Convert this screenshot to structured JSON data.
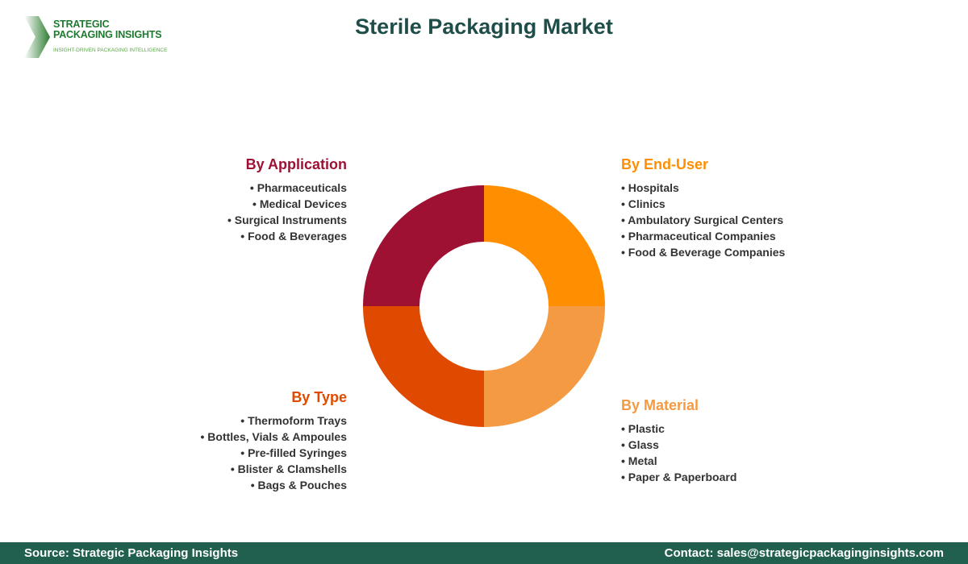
{
  "logo": {
    "line1": "STRATEGIC",
    "line2": "PACKAGING INSIGHTS",
    "tagline": "INSIGHT-DRIVEN PACKAGING INTELLIGENCE"
  },
  "title": "Sterile Packaging Market",
  "segments": [
    {
      "heading": "By Application",
      "color": "#9e1133",
      "items": [
        "Pharmaceuticals",
        "Medical Devices",
        "Surgical Instruments",
        "Food & Beverages"
      ]
    },
    {
      "heading": "By End-User",
      "color": "#ff8f00",
      "items": [
        "Hospitals",
        "Clinics",
        "Ambulatory Surgical Centers",
        "Pharmaceutical Companies",
        "Food & Beverage Companies"
      ]
    },
    {
      "heading": "By Type",
      "color": "#e04a00",
      "items": [
        "Thermoform Trays",
        "Bottles, Vials & Ampoules",
        "Pre-filled Syringes",
        "Blister & Clamshells",
        "Bags & Pouches"
      ]
    },
    {
      "heading": "By Material",
      "color": "#f49a42",
      "items": [
        "Plastic",
        "Glass",
        "Metal",
        "Paper & Paperboard"
      ]
    }
  ],
  "chart_data": {
    "type": "pie",
    "style": "donut",
    "categories": [
      "By End-User",
      "By Material",
      "By Type",
      "By Application"
    ],
    "values": [
      25,
      25,
      25,
      25
    ],
    "colors": [
      "#ff8f00",
      "#f49a42",
      "#e04a00",
      "#9e1133"
    ]
  },
  "footer": {
    "source": "Source: Strategic Packaging Insights",
    "contact": "Contact: sales@strategicpackaginginsights.com"
  }
}
